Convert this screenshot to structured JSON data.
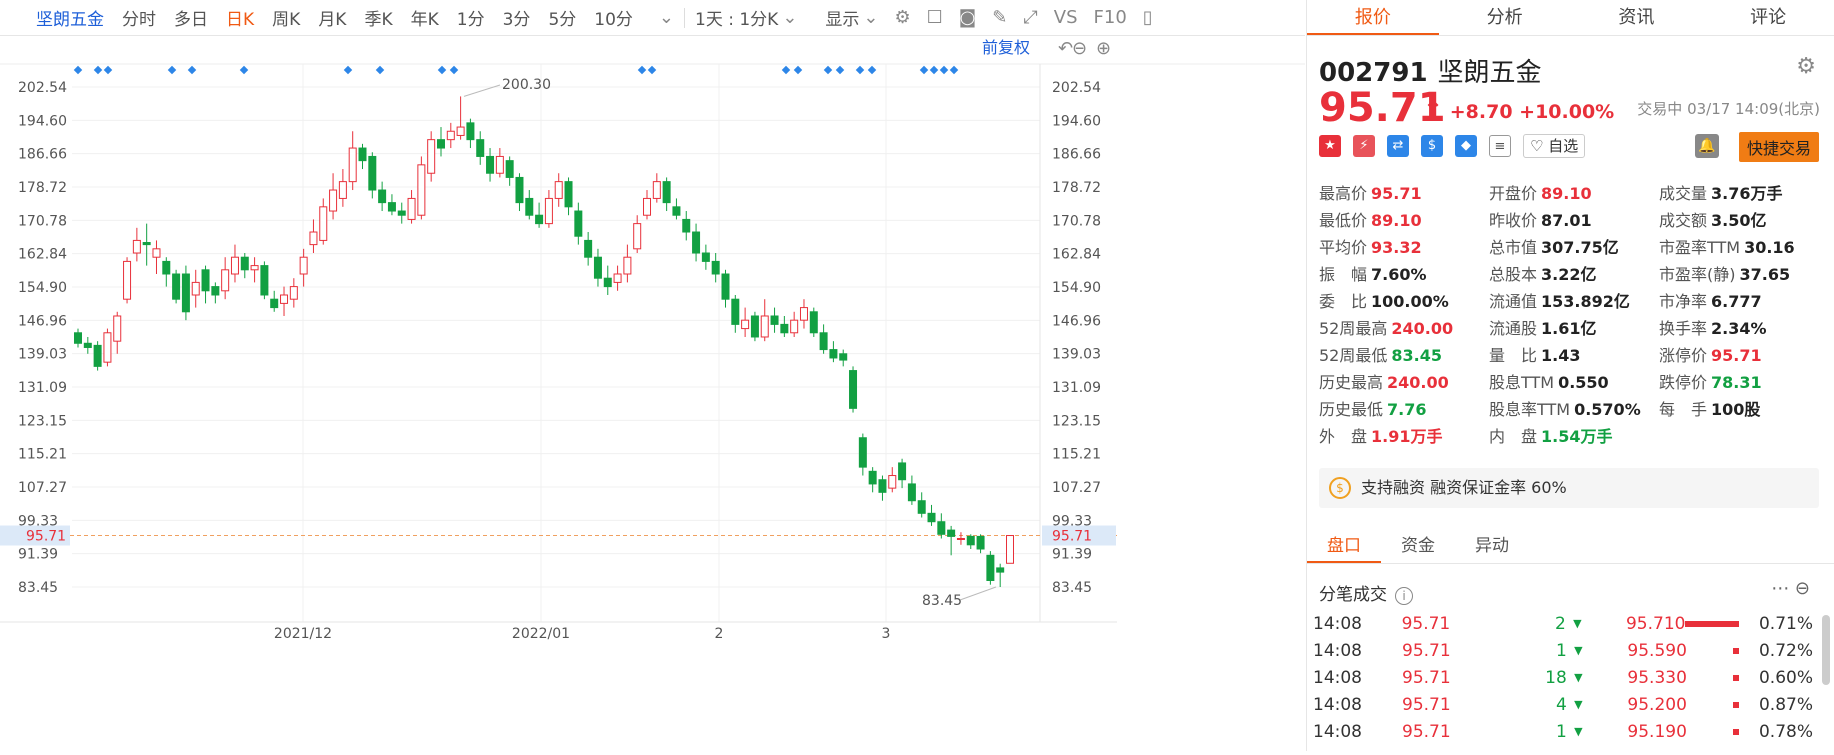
{
  "toolbar": {
    "name": "坚朗五金",
    "tabs": [
      "分时",
      "多日",
      "日K",
      "周K",
      "月K",
      "季K",
      "年K",
      "1分",
      "3分",
      "5分",
      "10分"
    ],
    "active_tab": "日K",
    "range": "1天 : 1分K",
    "display": "显示",
    "vs": "VS",
    "f10": "F10"
  },
  "chart": {
    "adjust_label": "前复权",
    "y_ticks": [
      "202.54",
      "194.60",
      "186.66",
      "178.72",
      "170.78",
      "162.84",
      "154.90",
      "146.96",
      "139.03",
      "131.09",
      "123.15",
      "115.21",
      "107.27",
      "99.33",
      "91.39",
      "83.45"
    ],
    "x_labels": [
      "2021/12",
      "2022/01",
      "2",
      "3"
    ],
    "current_price": "95.71",
    "high_label": "200.30",
    "low_label": "83.45",
    "up_color": "#e8303a",
    "down_color": "#12a042",
    "candles": [
      [
        144.0,
        141.5,
        145.0,
        140.5
      ],
      [
        141.5,
        140.5,
        143.0,
        139.0
      ],
      [
        141.0,
        136.0,
        142.0,
        135.0
      ],
      [
        137.0,
        144.0,
        145.0,
        136.0
      ],
      [
        142.0,
        148.0,
        149.0,
        139.0
      ],
      [
        152.0,
        161.0,
        162.0,
        151.0
      ],
      [
        163.0,
        166.0,
        169.0,
        161.0
      ],
      [
        165.5,
        165.0,
        170.0,
        160.0
      ],
      [
        162.0,
        164.0,
        166.0,
        158.0
      ],
      [
        161.0,
        158.0,
        162.0,
        155.0
      ],
      [
        158.0,
        152.0,
        159.0,
        151.0
      ],
      [
        158.0,
        149.0,
        160.0,
        147.0
      ],
      [
        153.0,
        156.0,
        159.0,
        150.0
      ],
      [
        159.0,
        154.0,
        160.0,
        151.0
      ],
      [
        155.0,
        153.0,
        156.0,
        151.0
      ],
      [
        154.0,
        159.0,
        162.0,
        152.0
      ],
      [
        158.0,
        162.0,
        165.0,
        156.0
      ],
      [
        162.0,
        159.0,
        163.0,
        157.0
      ],
      [
        159.0,
        160.0,
        162.0,
        156.0
      ],
      [
        160.0,
        153.0,
        161.0,
        152.0
      ],
      [
        152.0,
        150.0,
        154.0,
        149.0
      ],
      [
        151.0,
        153.0,
        155.0,
        148.0
      ],
      [
        152.0,
        155.0,
        157.0,
        150.0
      ],
      [
        158.0,
        162.0,
        164.0,
        155.0
      ],
      [
        165.0,
        168.0,
        171.0,
        163.0
      ],
      [
        166.0,
        174.0,
        176.0,
        165.0
      ],
      [
        173.0,
        178.0,
        182.0,
        171.0
      ],
      [
        176.0,
        180.0,
        183.0,
        174.0
      ],
      [
        180.0,
        188.0,
        192.0,
        178.0
      ],
      [
        188.0,
        185.0,
        189.0,
        183.0
      ],
      [
        186.0,
        178.0,
        187.0,
        176.0
      ],
      [
        178.0,
        175.0,
        180.0,
        173.0
      ],
      [
        175.0,
        173.0,
        177.0,
        172.0
      ],
      [
        173.0,
        172.0,
        175.0,
        170.0
      ],
      [
        171.0,
        176.0,
        178.0,
        170.0
      ],
      [
        172.0,
        184.0,
        186.0,
        171.0
      ],
      [
        182.0,
        190.0,
        192.0,
        180.0
      ],
      [
        190.0,
        188.0,
        193.0,
        186.0
      ],
      [
        190.0,
        192.0,
        194.0,
        188.0
      ],
      [
        191.0,
        193.0,
        200.3,
        190.0
      ],
      [
        194.0,
        190.0,
        195.0,
        188.0
      ],
      [
        190.0,
        186.0,
        192.0,
        184.0
      ],
      [
        186.0,
        182.0,
        188.0,
        180.0
      ],
      [
        182.0,
        186.0,
        188.0,
        181.0
      ],
      [
        185.0,
        181.0,
        186.0,
        179.0
      ],
      [
        181.0,
        175.0,
        182.0,
        173.0
      ],
      [
        176.0,
        172.0,
        178.0,
        171.0
      ],
      [
        172.0,
        170.0,
        175.0,
        169.0
      ],
      [
        170.0,
        176.0,
        178.0,
        169.0
      ],
      [
        176.0,
        180.0,
        182.0,
        174.0
      ],
      [
        180.0,
        174.0,
        181.0,
        172.0
      ],
      [
        173.0,
        167.0,
        175.0,
        165.0
      ],
      [
        166.0,
        162.0,
        168.0,
        160.0
      ],
      [
        162.0,
        157.0,
        164.0,
        155.0
      ],
      [
        157.0,
        155.0,
        160.0,
        153.0
      ],
      [
        156.0,
        158.0,
        160.0,
        154.0
      ],
      [
        158.0,
        162.0,
        165.0,
        156.0
      ],
      [
        164.0,
        170.0,
        172.0,
        163.0
      ],
      [
        172.0,
        176.0,
        178.0,
        171.0
      ],
      [
        176.0,
        180.0,
        182.0,
        175.0
      ],
      [
        180.0,
        175.0,
        181.0,
        173.0
      ],
      [
        174.0,
        172.0,
        176.0,
        171.0
      ],
      [
        171.0,
        168.0,
        173.0,
        166.0
      ],
      [
        168.0,
        163.0,
        170.0,
        161.0
      ],
      [
        163.0,
        161.0,
        165.0,
        159.0
      ],
      [
        161.0,
        158.0,
        163.0,
        156.0
      ],
      [
        158.0,
        152.0,
        159.0,
        150.0
      ],
      [
        152.0,
        146.0,
        153.0,
        144.0
      ],
      [
        145.0,
        147.0,
        150.0,
        143.0
      ],
      [
        148.0,
        143.0,
        149.0,
        142.0
      ],
      [
        143.0,
        148.0,
        152.0,
        142.0
      ],
      [
        148.0,
        146.0,
        150.0,
        144.0
      ],
      [
        146.0,
        144.0,
        148.0,
        143.0
      ],
      [
        144.0,
        147.0,
        149.0,
        143.0
      ],
      [
        147.0,
        150.0,
        152.0,
        145.0
      ],
      [
        149.0,
        144.0,
        150.0,
        143.0
      ],
      [
        144.0,
        140.0,
        146.0,
        139.0
      ],
      [
        140.0,
        138.0,
        142.0,
        137.0
      ],
      [
        139.0,
        137.5,
        140.0,
        136.0
      ],
      [
        135.0,
        126.0,
        136.0,
        125.0
      ],
      [
        119.0,
        112.0,
        120.0,
        110.0
      ],
      [
        111.0,
        108.0,
        112.0,
        106.0
      ],
      [
        109.0,
        106.0,
        110.0,
        104.0
      ],
      [
        107.0,
        110.0,
        112.0,
        106.0
      ],
      [
        113.0,
        109.0,
        114.0,
        107.0
      ],
      [
        108.0,
        104.0,
        110.0,
        103.0
      ],
      [
        104.0,
        101.0,
        106.0,
        100.0
      ],
      [
        101.0,
        99.0,
        103.0,
        98.0
      ],
      [
        99.0,
        96.0,
        101.0,
        95.0
      ],
      [
        97.0,
        95.5,
        98.0,
        91.0
      ],
      [
        95.0,
        95.0,
        96.5,
        93.5
      ],
      [
        95.5,
        93.5,
        96.0,
        92.5
      ],
      [
        95.5,
        92.5,
        96.0,
        91.5
      ],
      [
        91.0,
        85.0,
        92.0,
        84.0
      ],
      [
        88.0,
        87.0,
        89.0,
        83.45
      ],
      [
        89.1,
        95.71,
        95.71,
        89.1
      ]
    ]
  },
  "right": {
    "tabs": [
      "报价",
      "分析",
      "资讯",
      "评论"
    ],
    "active_tab": "报价",
    "code": "002791",
    "name": "坚朗五金",
    "price": "95.71",
    "arrow": "↑",
    "change": "+8.70 +10.00%",
    "status": "交易中 03/17 14:09(北京)",
    "watch_label": "自选",
    "fast_trade": "快捷交易",
    "stats": [
      [
        {
          "l": "最高价",
          "v": "95.71",
          "c": "red"
        },
        {
          "l": "开盘价",
          "v": "89.10",
          "c": "red"
        },
        {
          "l": "成交量",
          "v": "3.76万手",
          "c": "dark"
        }
      ],
      [
        {
          "l": "最低价",
          "v": "89.10",
          "c": "red"
        },
        {
          "l": "昨收价",
          "v": "87.01",
          "c": "dark"
        },
        {
          "l": "成交额",
          "v": "3.50亿",
          "c": "dark"
        }
      ],
      [
        {
          "l": "平均价",
          "v": "93.32",
          "c": "red"
        },
        {
          "l": "总市值",
          "v": "307.75亿",
          "c": "dark"
        },
        {
          "l": "市盈率TTM",
          "v": "30.16",
          "c": "dark"
        }
      ],
      [
        {
          "l": "振　幅",
          "v": "7.60%",
          "c": "dark"
        },
        {
          "l": "总股本",
          "v": "3.22亿",
          "c": "dark"
        },
        {
          "l": "市盈率(静)",
          "v": "37.65",
          "c": "dark"
        }
      ],
      [
        {
          "l": "委　比",
          "v": "100.00%",
          "c": "dark"
        },
        {
          "l": "流通值",
          "v": "153.892亿",
          "c": "dark"
        },
        {
          "l": "市净率",
          "v": "6.777",
          "c": "dark"
        }
      ],
      [
        {
          "l": "52周最高",
          "v": "240.00",
          "c": "red"
        },
        {
          "l": "流通股",
          "v": "1.61亿",
          "c": "dark"
        },
        {
          "l": "换手率",
          "v": "2.34%",
          "c": "dark"
        }
      ],
      [
        {
          "l": "52周最低",
          "v": "83.45",
          "c": "green"
        },
        {
          "l": "量　比",
          "v": "1.43",
          "c": "dark"
        },
        {
          "l": "涨停价",
          "v": "95.71",
          "c": "red"
        }
      ],
      [
        {
          "l": "历史最高",
          "v": "240.00",
          "c": "red"
        },
        {
          "l": "股息TTM",
          "v": "0.550",
          "c": "dark"
        },
        {
          "l": "跌停价",
          "v": "78.31",
          "c": "green"
        }
      ],
      [
        {
          "l": "历史最低",
          "v": "7.76",
          "c": "green"
        },
        {
          "l": "股息率TTM",
          "v": "0.570%",
          "c": "dark"
        },
        {
          "l": "每　手",
          "v": "100股",
          "c": "dark"
        }
      ],
      [
        {
          "l": "外　盘",
          "v": "1.91万手",
          "c": "red"
        },
        {
          "l": "内　盘",
          "v": "1.54万手",
          "c": "green"
        },
        {
          "l": "",
          "v": "",
          "c": "dark"
        }
      ]
    ],
    "margin_text": "支持融资 融资保证金率 60%",
    "sub_tabs": [
      "盘口",
      "资金",
      "异动"
    ],
    "sub_active": "盘口",
    "tick_title": "分笔成交",
    "ticks": [
      {
        "t": "14:08",
        "p": "95.71",
        "v": "2",
        "bp": "95.710",
        "pct": "0.71%"
      },
      {
        "t": "14:08",
        "p": "95.71",
        "v": "1",
        "bp": "95.590",
        "pct": "0.72%"
      },
      {
        "t": "14:08",
        "p": "95.71",
        "v": "18",
        "bp": "95.330",
        "pct": "0.60%"
      },
      {
        "t": "14:08",
        "p": "95.71",
        "v": "4",
        "bp": "95.200",
        "pct": "0.87%"
      },
      {
        "t": "14:08",
        "p": "95.71",
        "v": "1",
        "bp": "95.190",
        "pct": "0.78%"
      }
    ]
  }
}
